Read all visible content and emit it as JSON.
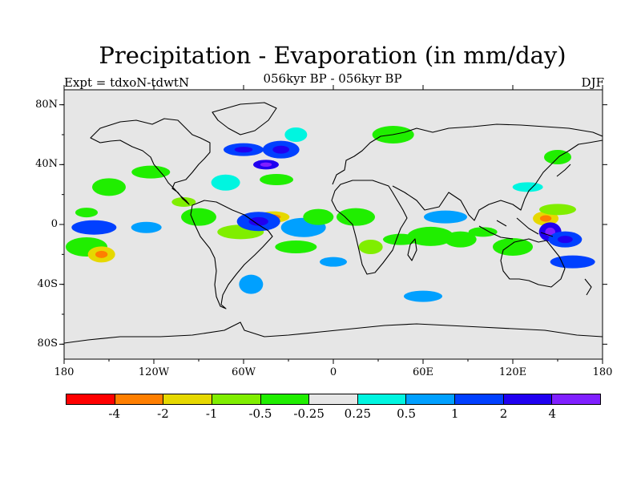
{
  "title": "Precipitation - Evaporation (in mm/day)",
  "subtitle": "056kyr BP - 056kyr BP",
  "expt_label": "Expt = tdxoN-tdwtN",
  "season": "DJF",
  "y_ticks": [
    {
      "label": "80N",
      "lat": 80
    },
    {
      "label": "40N",
      "lat": 40
    },
    {
      "label": "0",
      "lat": 0
    },
    {
      "label": "40S",
      "lat": -40
    },
    {
      "label": "80S",
      "lat": -80
    }
  ],
  "x_ticks": [
    {
      "label": "180",
      "lon": -180
    },
    {
      "label": "120W",
      "lon": -120
    },
    {
      "label": "60W",
      "lon": -60
    },
    {
      "label": "0",
      "lon": 0
    },
    {
      "label": "60E",
      "lon": 60
    },
    {
      "label": "120E",
      "lon": 120
    },
    {
      "label": "180",
      "lon": 180
    }
  ],
  "colorbar": {
    "colors": [
      "#ff0000",
      "#ff7f00",
      "#e6d800",
      "#80ee00",
      "#20ee00",
      "#e6e6e6",
      "#00f5e0",
      "#00a0ff",
      "#0040ff",
      "#2000f0",
      "#8020ff"
    ],
    "labels": [
      "-4",
      "-2",
      "-1",
      "-0.5",
      "-0.25",
      "0.25",
      "0.5",
      "1",
      "2",
      "4"
    ]
  },
  "chart_data": {
    "type": "heatmap",
    "title": "Precipitation - Evaporation (in mm/day)",
    "subtitle": "056kyr BP - 056kyr BP",
    "lon_range": [
      -180,
      180
    ],
    "lat_range": [
      -90,
      90
    ],
    "levels": [
      -4,
      -2,
      -1,
      -0.5,
      -0.25,
      0.25,
      0.5,
      1,
      2,
      4
    ],
    "background": "#e6e6e6",
    "regions": [
      {
        "lon": -165,
        "lat": 8,
        "value": -0.4
      },
      {
        "lon": -150,
        "lat": 25,
        "value": -0.4
      },
      {
        "lon": -160,
        "lat": -2,
        "value": 1.0
      },
      {
        "lon": -125,
        "lat": -2,
        "value": 0.7
      },
      {
        "lon": -165,
        "lat": -15,
        "value": -0.5
      },
      {
        "lon": -155,
        "lat": -20,
        "value": -1.5
      },
      {
        "lon": -122,
        "lat": 35,
        "value": -0.3
      },
      {
        "lon": -100,
        "lat": 15,
        "value": -0.6
      },
      {
        "lon": -90,
        "lat": 5,
        "value": -0.3
      },
      {
        "lon": -62,
        "lat": -5,
        "value": -0.6
      },
      {
        "lon": -40,
        "lat": 5,
        "value": -1.5
      },
      {
        "lon": -50,
        "lat": 2,
        "value": 1.2
      },
      {
        "lon": -72,
        "lat": 28,
        "value": 0.4
      },
      {
        "lon": -60,
        "lat": 50,
        "value": 1.4
      },
      {
        "lon": -45,
        "lat": 40,
        "value": 2.2
      },
      {
        "lon": -35,
        "lat": 50,
        "value": 1.5
      },
      {
        "lon": -25,
        "lat": 60,
        "value": 0.4
      },
      {
        "lon": -38,
        "lat": 30,
        "value": -0.3
      },
      {
        "lon": -20,
        "lat": -2,
        "value": 0.6
      },
      {
        "lon": -10,
        "lat": 5,
        "value": -0.5
      },
      {
        "lon": -25,
        "lat": -15,
        "value": -0.3
      },
      {
        "lon": 0,
        "lat": -25,
        "value": 0.6
      },
      {
        "lon": 15,
        "lat": 5,
        "value": -0.3
      },
      {
        "lon": 25,
        "lat": -15,
        "value": -0.6
      },
      {
        "lon": 45,
        "lat": -10,
        "value": -0.3
      },
      {
        "lon": 65,
        "lat": -8,
        "value": -0.4
      },
      {
        "lon": 85,
        "lat": -10,
        "value": -0.3
      },
      {
        "lon": 75,
        "lat": 5,
        "value": 0.6
      },
      {
        "lon": 100,
        "lat": -5,
        "value": -0.3
      },
      {
        "lon": 120,
        "lat": -15,
        "value": -0.5
      },
      {
        "lon": 142,
        "lat": 4,
        "value": -1.8
      },
      {
        "lon": 150,
        "lat": 10,
        "value": -0.7
      },
      {
        "lon": 145,
        "lat": -5,
        "value": 2.4
      },
      {
        "lon": 155,
        "lat": -10,
        "value": 1.2
      },
      {
        "lon": 160,
        "lat": -25,
        "value": 1.0
      },
      {
        "lon": 130,
        "lat": 25,
        "value": 0.4
      },
      {
        "lon": 40,
        "lat": 60,
        "value": -0.4
      },
      {
        "lon": 150,
        "lat": 45,
        "value": -0.3
      },
      {
        "lon": 60,
        "lat": -48,
        "value": 0.7
      },
      {
        "lon": -55,
        "lat": -40,
        "value": 0.6
      }
    ]
  }
}
